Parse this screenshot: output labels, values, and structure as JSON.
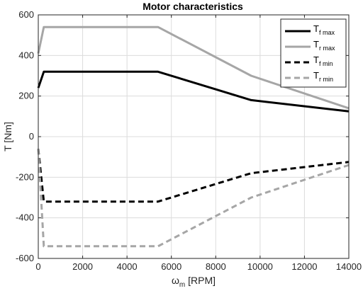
{
  "chart_data": {
    "type": "line",
    "title": "Motor characteristics",
    "xlabel": {
      "main": "ω",
      "sub": "m",
      "suffix": " [RPM]"
    },
    "ylabel": "T [Nm]",
    "xlim": [
      0,
      14000
    ],
    "ylim": [
      -600,
      600
    ],
    "xticks": [
      0,
      2000,
      4000,
      6000,
      8000,
      10000,
      12000,
      14000
    ],
    "yticks": [
      -600,
      -400,
      -200,
      0,
      200,
      400,
      600
    ],
    "grid": true,
    "legend_position": "top-right",
    "series": [
      {
        "name": "T",
        "sub": "f max",
        "color": "#000000",
        "style": "solid",
        "x": [
          0,
          250,
          5400,
          9600,
          14000
        ],
        "y": [
          240,
          320,
          320,
          180,
          125
        ]
      },
      {
        "name": "T",
        "sub": "r max",
        "color": "#a6a6a6",
        "style": "solid",
        "x": [
          0,
          250,
          5400,
          9600,
          14000
        ],
        "y": [
          410,
          540,
          540,
          300,
          140
        ]
      },
      {
        "name": "T",
        "sub": "f min",
        "color": "#000000",
        "style": "dashed",
        "x": [
          0,
          250,
          5400,
          9600,
          14000
        ],
        "y": [
          -60,
          -320,
          -320,
          -180,
          -125
        ]
      },
      {
        "name": "T",
        "sub": "r min",
        "color": "#a6a6a6",
        "style": "dashed",
        "x": [
          0,
          250,
          5400,
          9600,
          14000
        ],
        "y": [
          -60,
          -540,
          -540,
          -300,
          -140
        ]
      }
    ]
  }
}
